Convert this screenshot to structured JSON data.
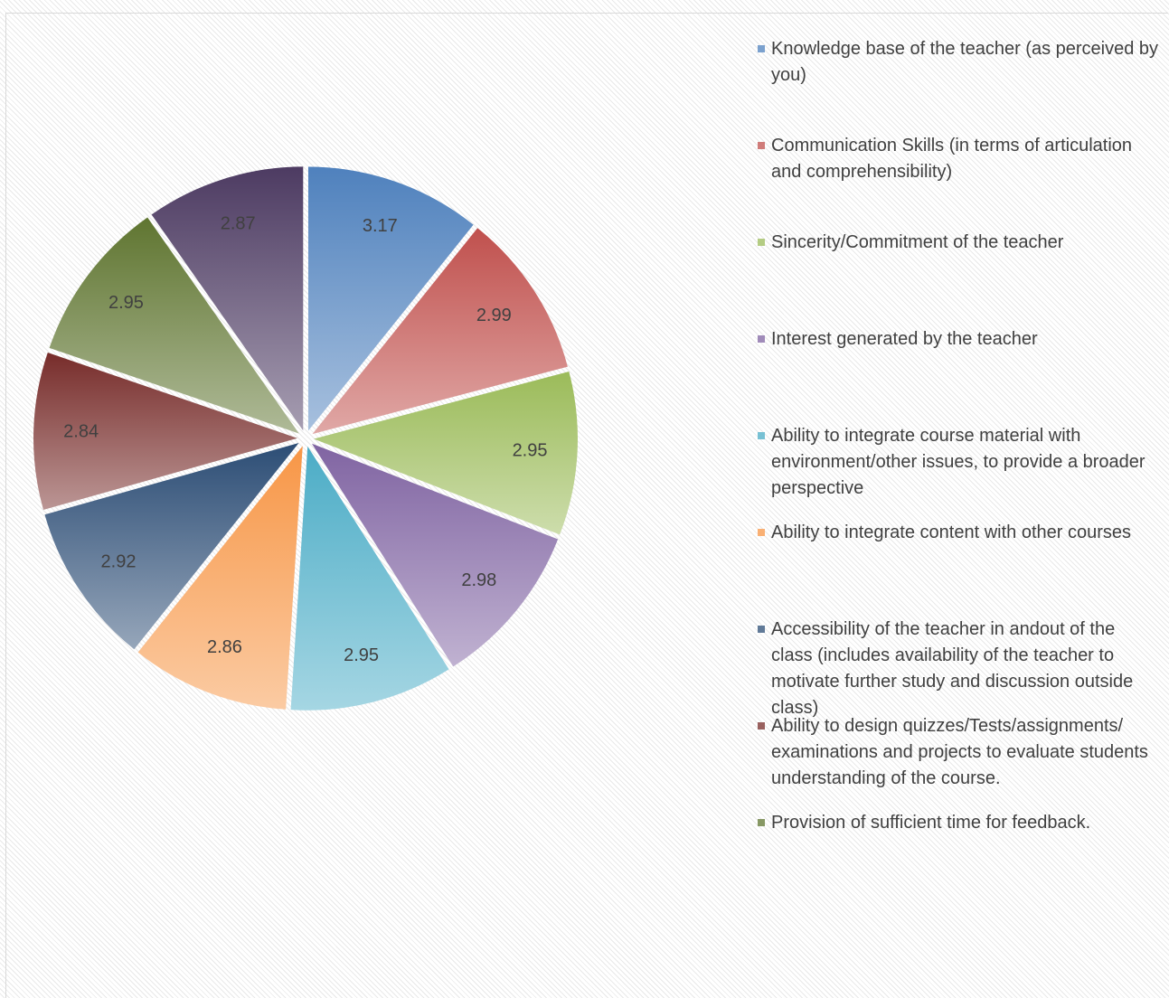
{
  "chart_data": {
    "type": "pie",
    "categories": [
      "Knowledge base of the teacher (as perceived by you)",
      "Communication Skills (in terms of articulation and comprehensibility)",
      "Sincerity/Commitment of the teacher",
      "Interest generated by the teacher",
      "Ability to integrate course material with environment/other issues, to provide a broader perspective",
      "Ability to integrate  content  with  other courses",
      "Accessibility of the teacher in andout  of the  class  (includes availability of  the teacher to motivate further study and discussion outside class)",
      "Ability to design quizzes/Tests/assignments/ examinations and projects to evaluate students understanding of the course.",
      "Provision of sufficient time for feedback.",
      null
    ],
    "values": [
      3.17,
      2.99,
      2.95,
      2.98,
      2.95,
      2.86,
      2.92,
      2.84,
      2.95,
      2.87
    ],
    "colors": [
      "#4f81bd",
      "#c0504d",
      "#9bbb59",
      "#8064a2",
      "#4bacc6",
      "#f79646",
      "#2c4d75",
      "#772c2a",
      "#5f7530",
      "#4d3b62"
    ],
    "legend": "right"
  }
}
